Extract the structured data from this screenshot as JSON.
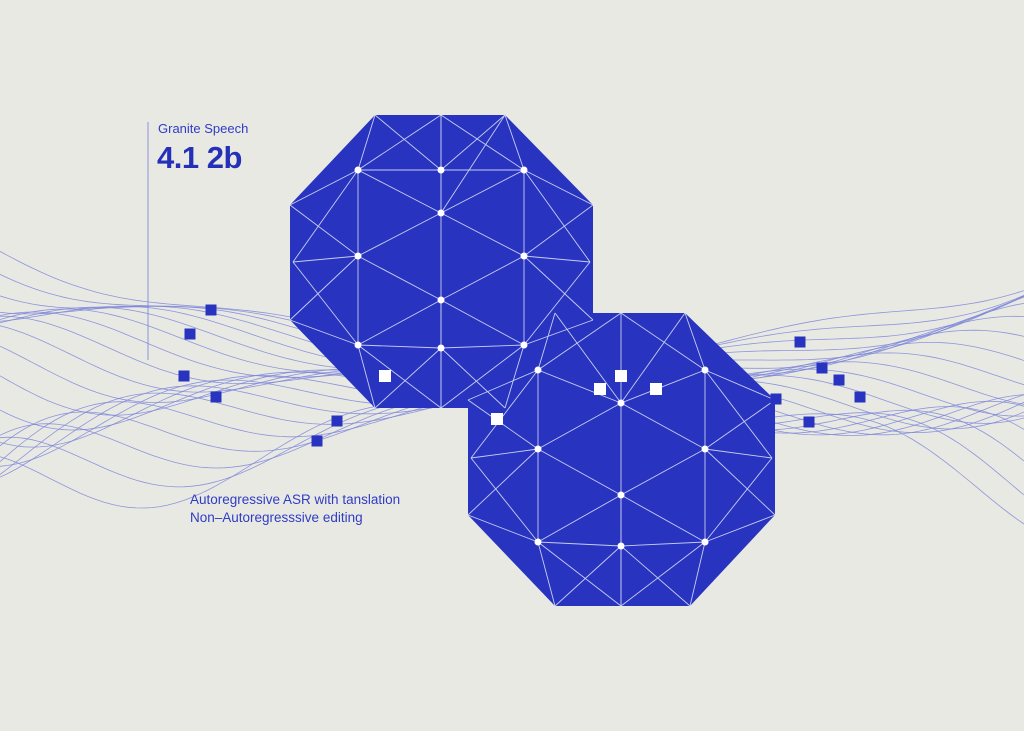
{
  "label": {
    "subtitle": "Granite Speech",
    "title": "4.1 2b"
  },
  "features": [
    "Autoregressive ASR with tanslation",
    "Non–Autoregresssive editing"
  ],
  "colors": {
    "background": "#e9e9e4",
    "accent": "#2834c0",
    "line": "#7d86d8",
    "node": "#ffffff"
  }
}
